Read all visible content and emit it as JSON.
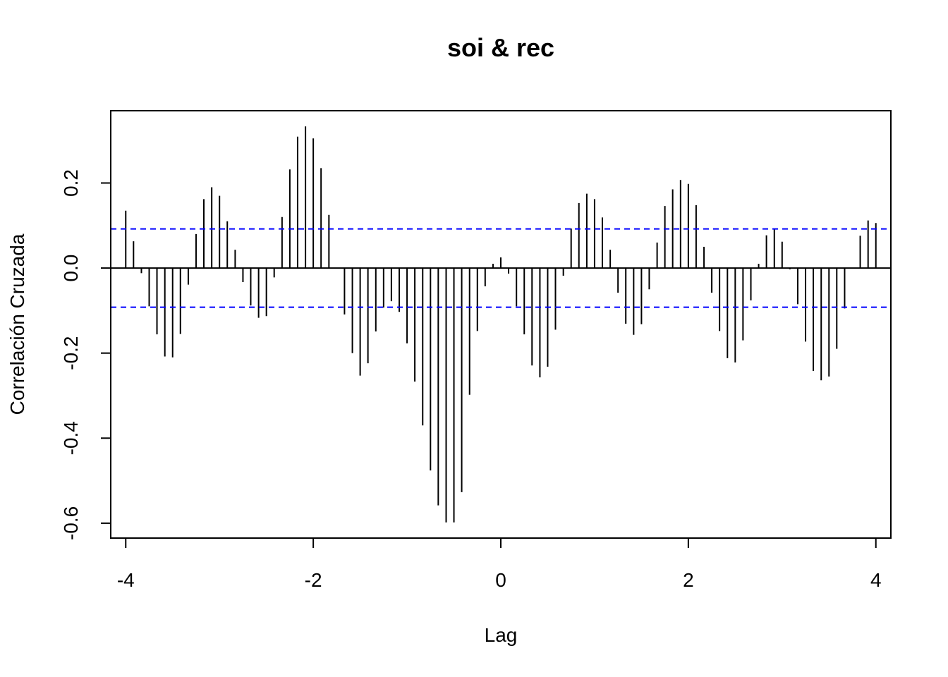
{
  "chart_data": {
    "type": "bar",
    "title": "soi & rec",
    "xlabel": "Lag",
    "ylabel": "Correlación Cruzada",
    "xlim": [
      -4.16,
      4.16
    ],
    "ylim": [
      -0.635,
      0.37
    ],
    "xticks": [
      -4,
      -2,
      0,
      2,
      4
    ],
    "yticks": [
      -0.6,
      -0.4,
      -0.2,
      0.0,
      0.2
    ],
    "xtick_labels": [
      "-4",
      "-2",
      "0",
      "2",
      "4"
    ],
    "ytick_labels": [
      "-0.6",
      "-0.4",
      "-0.2",
      "0.0",
      "0.2"
    ],
    "confidence_band": 0.092,
    "colors": {
      "bars": "#000000",
      "confidence": "#0000ff",
      "axes": "#000000"
    },
    "grid": false,
    "x": [
      -4.0,
      -3.917,
      -3.833,
      -3.75,
      -3.667,
      -3.583,
      -3.5,
      -3.417,
      -3.333,
      -3.25,
      -3.167,
      -3.083,
      -3.0,
      -2.917,
      -2.833,
      -2.75,
      -2.667,
      -2.583,
      -2.5,
      -2.417,
      -2.333,
      -2.25,
      -2.167,
      -2.083,
      -2.0,
      -1.917,
      -1.833,
      -1.75,
      -1.667,
      -1.583,
      -1.5,
      -1.417,
      -1.333,
      -1.25,
      -1.167,
      -1.083,
      -1.0,
      -0.917,
      -0.833,
      -0.75,
      -0.667,
      -0.583,
      -0.5,
      -0.417,
      -0.333,
      -0.25,
      -0.167,
      -0.083,
      0.0,
      0.083,
      0.167,
      0.25,
      0.333,
      0.417,
      0.5,
      0.583,
      0.667,
      0.75,
      0.833,
      0.917,
      1.0,
      1.083,
      1.167,
      1.25,
      1.333,
      1.417,
      1.5,
      1.583,
      1.667,
      1.75,
      1.833,
      1.917,
      2.0,
      2.083,
      2.167,
      2.25,
      2.333,
      2.417,
      2.5,
      2.583,
      2.667,
      2.75,
      2.833,
      2.917,
      3.0,
      3.083,
      3.167,
      3.25,
      3.333,
      3.417,
      3.5,
      3.583,
      3.667,
      3.75,
      3.833,
      3.917,
      4.0
    ],
    "values": [
      0.135,
      0.063,
      -0.012,
      -0.09,
      -0.156,
      -0.208,
      -0.21,
      -0.155,
      -0.039,
      0.08,
      0.162,
      0.19,
      0.17,
      0.11,
      0.043,
      -0.033,
      -0.088,
      -0.117,
      -0.113,
      -0.022,
      0.12,
      0.232,
      0.309,
      0.333,
      0.305,
      0.235,
      0.125,
      0.0,
      -0.109,
      -0.2,
      -0.253,
      -0.224,
      -0.149,
      -0.093,
      -0.078,
      -0.103,
      -0.177,
      -0.267,
      -0.37,
      -0.476,
      -0.558,
      -0.598,
      -0.598,
      -0.527,
      -0.298,
      -0.148,
      -0.043,
      0.01,
      0.025,
      -0.013,
      -0.09,
      -0.156,
      -0.229,
      -0.257,
      -0.232,
      -0.145,
      -0.018,
      0.093,
      0.153,
      0.175,
      0.162,
      0.119,
      0.043,
      -0.058,
      -0.131,
      -0.157,
      -0.132,
      -0.05,
      0.06,
      0.146,
      0.185,
      0.207,
      0.198,
      0.148,
      0.05,
      -0.058,
      -0.148,
      -0.212,
      -0.222,
      -0.17,
      -0.076,
      0.01,
      0.077,
      0.092,
      0.062,
      -0.003,
      -0.085,
      -0.173,
      -0.242,
      -0.264,
      -0.255,
      -0.19,
      -0.095,
      0.0,
      0.076,
      0.112,
      0.106
    ]
  }
}
